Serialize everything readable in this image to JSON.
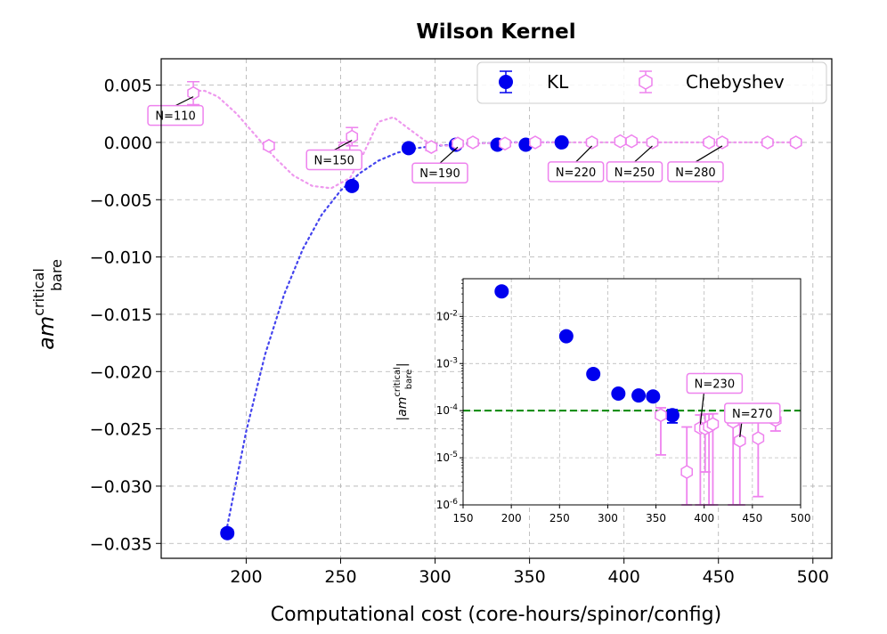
{
  "chart_data": [
    {
      "type": "scatter",
      "title": "Wilson Kernel",
      "xlabel": "Computational cost (core-hours/spinor/config)",
      "ylabel_main": "am",
      "ylabel_sup": "critical",
      "ylabel_sub": "bare",
      "xlim": [
        155,
        510
      ],
      "ylim": [
        -0.0363,
        0.0073
      ],
      "xticks": [
        200,
        250,
        300,
        350,
        400,
        450,
        500
      ],
      "yticks": [
        0.005,
        0.0,
        -0.005,
        -0.01,
        -0.015,
        -0.02,
        -0.025,
        -0.03,
        -0.035
      ],
      "xtick_labels": [
        "200",
        "250",
        "300",
        "350",
        "400",
        "450",
        "500"
      ],
      "ytick_labels": [
        "0.005",
        "0.000",
        "−0.005",
        "−0.010",
        "−0.015",
        "−0.020",
        "−0.025",
        "−0.030",
        "−0.035"
      ],
      "grid": true,
      "legend": {
        "position": "upper-right",
        "entries": [
          "KL",
          "Chebyshev"
        ],
        "colors": [
          "#0000ee",
          "#ee82ee"
        ]
      },
      "series": [
        {
          "name": "KL",
          "color": "#0000ee",
          "marker": "filled-circle",
          "x": [
            190,
            256,
            286,
            311,
            333,
            348,
            367
          ],
          "y": [
            -0.0341,
            -0.0038,
            -0.0005,
            -0.0002,
            -0.0002,
            -0.0002,
            0.0
          ],
          "err": [
            0.0003,
            0.0003,
            0.0001,
            0.0001,
            0.0001,
            0.0001,
            0.0001
          ]
        },
        {
          "name": "Chebyshev",
          "color": "#ee82ee",
          "marker": "hollow-hexagon",
          "x": [
            172,
            212,
            252,
            256,
            298,
            312,
            320,
            337,
            353,
            383,
            398,
            404,
            415,
            445,
            452,
            476,
            491
          ],
          "y": [
            0.0043,
            -0.0003,
            -0.0005,
            0.0005,
            -0.0004,
            -0.0001,
            0.0,
            -0.0001,
            0.0,
            0.0,
            0.0001,
            0.0001,
            0.0,
            0.0,
            0.0,
            0.0,
            0.0
          ],
          "err": [
            0.001,
            0.0003,
            0.0005,
            0.0008,
            0.0003,
            0.0002,
            0.0002,
            0.0002,
            0.0002,
            0.0001,
            0.0001,
            0.0001,
            0.0001,
            0.0001,
            0.0001,
            0.0001,
            0.0001
          ]
        }
      ],
      "fit_curves": [
        {
          "name": "KL trend",
          "color": "#4444ee",
          "style": "dotted",
          "x": [
            190,
            200,
            210,
            220,
            230,
            240,
            250,
            260,
            270,
            280,
            290,
            300,
            320,
            340,
            370
          ],
          "y": [
            -0.0335,
            -0.0252,
            -0.0185,
            -0.0133,
            -0.0093,
            -0.0063,
            -0.0042,
            -0.0027,
            -0.0016,
            -0.0009,
            -0.0005,
            -0.0003,
            -0.0001,
            0.0,
            0.0
          ]
        },
        {
          "name": "Chebyshev trend",
          "color": "#ee99ee",
          "style": "dotted",
          "x": [
            172,
            178,
            185,
            195,
            205,
            215,
            225,
            235,
            245,
            255,
            262,
            270,
            278,
            286,
            295,
            305,
            320,
            350,
            400,
            491
          ],
          "y": [
            0.0045,
            0.0045,
            0.004,
            0.0025,
            0.0006,
            -0.0013,
            -0.0029,
            -0.0038,
            -0.004,
            -0.0031,
            -0.001,
            0.0018,
            0.0022,
            0.0012,
            0.0001,
            -0.0003,
            -0.0001,
            0.0,
            0.0,
            0.0
          ]
        }
      ],
      "annotations": [
        {
          "text": "N=110",
          "x": 172,
          "y": 0.0043
        },
        {
          "text": "N=150",
          "x": 256,
          "y": 0.0005
        },
        {
          "text": "N=190",
          "x": 312,
          "y": -0.0001
        },
        {
          "text": "N=220",
          "x": 383,
          "y": 0.0
        },
        {
          "text": "N=250",
          "x": 415,
          "y": 0.0
        },
        {
          "text": "N=280",
          "x": 452,
          "y": 0.0
        }
      ]
    },
    {
      "type": "scatter",
      "scale": "log-y",
      "xlim": [
        150,
        500
      ],
      "ylim_log10": [
        -6,
        -1.2
      ],
      "xticks": [
        150,
        200,
        250,
        300,
        350,
        400,
        450,
        500
      ],
      "xtick_labels": [
        "150",
        "200",
        "250",
        "300",
        "350",
        "400",
        "450",
        "500"
      ],
      "ytick_exponents": [
        -2,
        -3,
        -4,
        -5,
        -6
      ],
      "ytick_base": "10",
      "ylabel_text": "|am",
      "ylabel_sup": "critical",
      "ylabel_sub": "bare",
      "ylabel_close": "|",
      "threshold": {
        "value": 0.0001,
        "color": "#008800",
        "style": "dashed"
      },
      "series": [
        {
          "name": "KL",
          "color": "#0000ee",
          "marker": "filled-circle",
          "x": [
            190,
            257,
            285,
            311,
            332,
            347,
            367
          ],
          "y": [
            0.034,
            0.0038,
            0.0006,
            0.00023,
            0.00021,
            0.0002,
            8e-05
          ],
          "err_low": [
            0.031,
            0.0035,
            0.0005,
            0.0002,
            0.00018,
            0.00017,
            5.5e-05
          ],
          "err_high": [
            0.037,
            0.0041,
            0.0007,
            0.00026,
            0.00024,
            0.00023,
            0.000105
          ]
        },
        {
          "name": "Chebyshev",
          "color": "#ee82ee",
          "marker": "hollow-hexagon",
          "x": [
            355,
            382,
            396,
            401,
            405,
            409,
            430,
            437,
            456,
            474
          ],
          "y": [
            8e-05,
            5e-06,
            4.3e-05,
            4.2e-05,
            4.6e-05,
            5.2e-05,
            5.8e-05,
            2.3e-05,
            2.6e-05,
            6.3e-05
          ],
          "err_low": [
            1.15e-05,
            9e-07,
            9e-07,
            5e-06,
            9e-07,
            9e-07,
            9e-07,
            9e-07,
            1.5e-06,
            3.7e-05
          ],
          "err_high": [
            0.000115,
            4.5e-05,
            8.1e-05,
            8.4e-05,
            8.5e-05,
            8.6e-05,
            9.2e-05,
            8.8e-05,
            9.5e-05,
            9.5e-05
          ]
        }
      ],
      "annotations": [
        {
          "text": "N=230",
          "x": 396,
          "y": 4.3e-05
        },
        {
          "text": "N=270",
          "x": 437,
          "y": 2.3e-05
        }
      ]
    }
  ]
}
